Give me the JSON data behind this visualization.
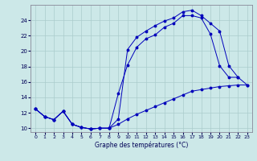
{
  "title": "Graphe des températures (°C)",
  "xlim": [
    -0.5,
    23.5
  ],
  "ylim": [
    9.5,
    26.0
  ],
  "xticks": [
    0,
    1,
    2,
    3,
    4,
    5,
    6,
    7,
    8,
    9,
    10,
    11,
    12,
    13,
    14,
    15,
    16,
    17,
    18,
    19,
    20,
    21,
    22,
    23
  ],
  "yticks": [
    10,
    12,
    14,
    16,
    18,
    20,
    22,
    24
  ],
  "bg_color": "#cce8e8",
  "grid_color": "#aacccc",
  "line_color": "#0000bb",
  "curve1_x": [
    0,
    1,
    2,
    3,
    4,
    5,
    6,
    7,
    8,
    9,
    10,
    11,
    12,
    13,
    14,
    15,
    16,
    17,
    18,
    19,
    20,
    21,
    22,
    23
  ],
  "curve1_y": [
    12.5,
    11.5,
    11.1,
    12.2,
    10.5,
    10.1,
    9.9,
    10.0,
    10.0,
    11.2,
    20.2,
    21.8,
    22.6,
    23.3,
    23.9,
    24.3,
    25.1,
    25.3,
    24.6,
    23.6,
    22.6,
    18.1,
    16.6,
    15.6
  ],
  "curve2_x": [
    0,
    1,
    2,
    3,
    4,
    5,
    6,
    7,
    8,
    9,
    10,
    11,
    12,
    13,
    14,
    15,
    16,
    17,
    18,
    19,
    20,
    21,
    22,
    23
  ],
  "curve2_y": [
    12.5,
    11.5,
    11.1,
    12.2,
    10.5,
    10.1,
    9.9,
    10.0,
    10.0,
    14.5,
    18.2,
    20.5,
    21.6,
    22.1,
    23.1,
    23.6,
    24.6,
    24.6,
    24.3,
    22.2,
    18.1,
    16.6,
    16.6,
    null
  ],
  "curve3_x": [
    0,
    1,
    2,
    3,
    4,
    5,
    6,
    7,
    8,
    9,
    10,
    11,
    12,
    13,
    14,
    15,
    16,
    17,
    18,
    19,
    20,
    21,
    22,
    23
  ],
  "curve3_y": [
    12.5,
    11.5,
    11.1,
    12.2,
    10.5,
    10.1,
    9.9,
    10.0,
    10.0,
    10.5,
    11.2,
    11.8,
    12.3,
    12.8,
    13.3,
    13.8,
    14.3,
    14.8,
    15.0,
    15.2,
    15.4,
    15.5,
    15.6,
    15.6
  ]
}
